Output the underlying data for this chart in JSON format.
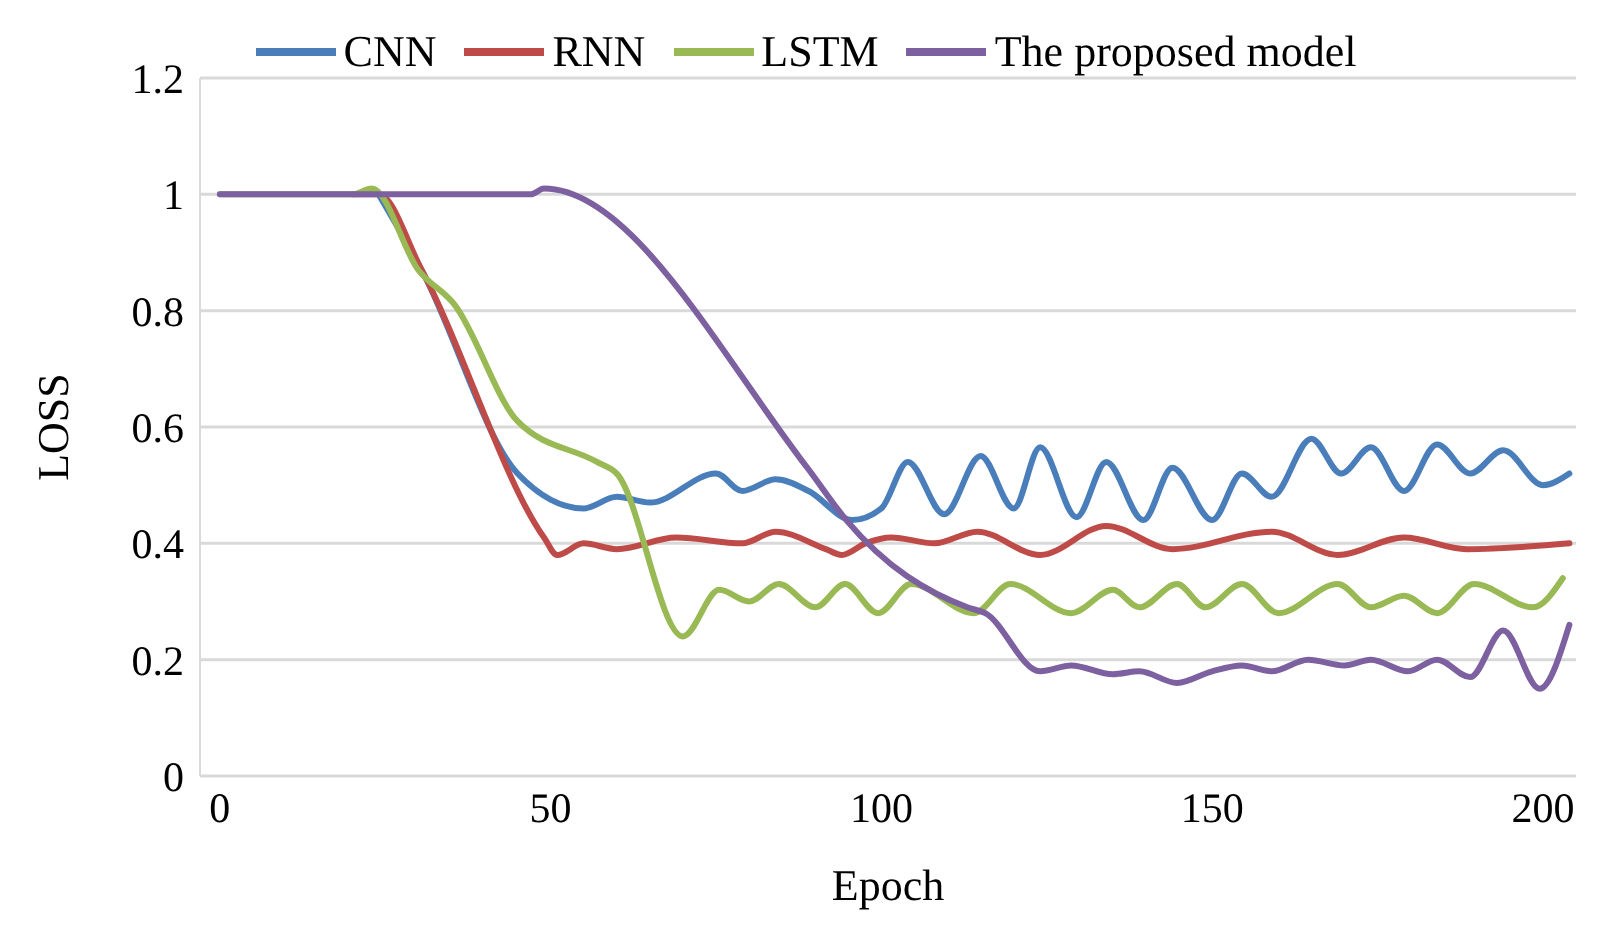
{
  "chart_data": {
    "type": "line",
    "xlabel": "Epoch",
    "ylabel": "LOSS",
    "xlim": [
      -3,
      205
    ],
    "xticks": [
      0,
      50,
      100,
      150,
      200
    ],
    "ylim": [
      0,
      1.2
    ],
    "yticks": [
      0,
      0.2,
      0.4,
      0.6,
      0.8,
      1,
      1.2
    ],
    "grid": "y",
    "legend": "top",
    "marker": "none",
    "line_style": "solid",
    "series": [
      {
        "name": "CNN",
        "color": "#4a7ebb",
        "x": [
          24,
          30.5,
          45,
          55,
          60,
          65,
          75,
          79,
          84,
          89,
          95.6,
          100,
          104,
          109.5,
          115,
          120,
          124,
          129.5,
          134,
          139.6,
          144,
          150,
          154.5,
          159,
          165,
          169.5,
          174,
          179,
          184,
          189,
          194,
          200,
          204
        ],
        "values": [
          1,
          0.87,
          0.52,
          0.46,
          0.48,
          0.47,
          0.52,
          0.49,
          0.51,
          0.49,
          0.44,
          0.46,
          0.54,
          0.45,
          0.55,
          0.46,
          0.565,
          0.445,
          0.54,
          0.44,
          0.53,
          0.44,
          0.52,
          0.48,
          0.58,
          0.52,
          0.565,
          0.49,
          0.57,
          0.52,
          0.56,
          0.5,
          0.52
        ]
      },
      {
        "name": "RNN",
        "color": "#be4b48",
        "x": [
          20,
          24,
          30.5,
          49,
          51,
          55,
          60,
          69,
          79,
          84,
          91.6,
          94,
          97.6,
          101.5,
          108,
          114.5,
          124,
          134,
          144,
          159,
          169,
          179,
          188.5,
          204
        ],
        "values": [
          1,
          1,
          0.87,
          0.41,
          0.38,
          0.4,
          0.39,
          0.41,
          0.4,
          0.42,
          0.39,
          0.38,
          0.4,
          0.41,
          0.4,
          0.42,
          0.38,
          0.43,
          0.39,
          0.42,
          0.38,
          0.41,
          0.39,
          0.4
        ]
      },
      {
        "name": "LSTM",
        "color": "#98b954",
        "x": [
          0,
          10,
          20,
          23,
          30,
          35.5,
          45,
          57,
          60,
          70,
          75.5,
          80,
          84.5,
          90,
          94.5,
          99.5,
          104.5,
          114,
          119.5,
          128.7,
          135,
          139,
          144.7,
          149,
          154.5,
          160,
          169,
          174,
          179,
          184,
          189.6,
          198.5,
          203
        ],
        "values": [
          1,
          1,
          1,
          1.01,
          0.87,
          0.81,
          0.61,
          0.54,
          0.52,
          0.24,
          0.32,
          0.3,
          0.33,
          0.29,
          0.33,
          0.28,
          0.33,
          0.28,
          0.33,
          0.28,
          0.32,
          0.29,
          0.33,
          0.29,
          0.33,
          0.28,
          0.33,
          0.29,
          0.31,
          0.28,
          0.33,
          0.29,
          0.34
        ]
      },
      {
        "name": "The proposed model",
        "color": "#7d60a0",
        "x": [
          0,
          10,
          20,
          30,
          40,
          47,
          49,
          88.8,
          94.7,
          113,
          115.7,
          124,
          128.7,
          135,
          139,
          144.7,
          150,
          154.5,
          159,
          164.5,
          170,
          174,
          179.6,
          184,
          189,
          194,
          199.5,
          204
        ],
        "values": [
          1,
          1,
          1,
          1,
          1,
          1,
          1.01,
          0.53,
          0.44,
          0.29,
          0.28,
          0.18,
          0.19,
          0.175,
          0.18,
          0.16,
          0.18,
          0.19,
          0.18,
          0.2,
          0.19,
          0.2,
          0.18,
          0.2,
          0.17,
          0.25,
          0.15,
          0.26
        ]
      }
    ]
  }
}
